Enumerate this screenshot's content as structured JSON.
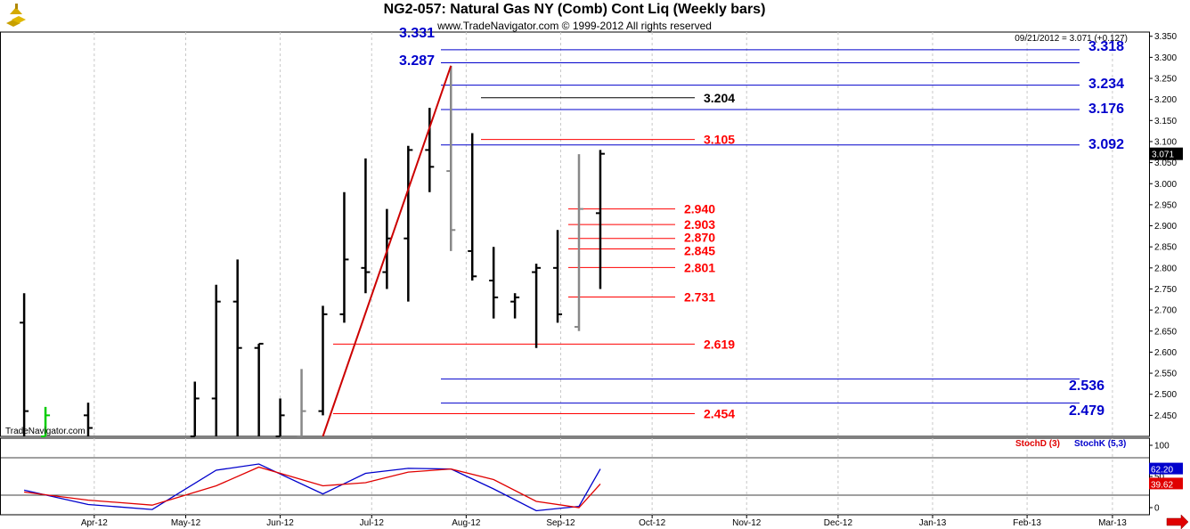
{
  "header": {
    "title": "NG2-057:  Natural Gas NY (Comb) Cont Liq  (Weekly bars)",
    "copyright": "www.TradeNavigator.com © 1999-2012 All rights reserved",
    "last_info": "09/21/2012 = 3.071 (+0.127)",
    "watermark": "TradeNavigator.com",
    "logo_icon": "gold-bars-icon"
  },
  "chart_data": [
    {
      "type": "bar",
      "subtype": "ohlc",
      "ylim": [
        2.4,
        3.36
      ],
      "y_ticks": [
        "3.350",
        "3.300",
        "3.250",
        "3.200",
        "3.150",
        "3.100",
        "3.050",
        "3.000",
        "2.950",
        "2.900",
        "2.850",
        "2.800",
        "2.750",
        "2.700",
        "2.650",
        "2.600",
        "2.550",
        "2.500",
        "2.450"
      ],
      "last_price_label": "3.071",
      "x_ticks": [
        "Apr-12",
        "May-12",
        "Jun-12",
        "Jul-12",
        "Aug-12",
        "Sep-12",
        "Oct-12",
        "Nov-12",
        "Dec-12",
        "Jan-13",
        "Feb-13",
        "Mar-13"
      ],
      "x_tick_dates": [
        "2012-04-01",
        "2012-05-01",
        "2012-06-01",
        "2012-07-01",
        "2012-08-01",
        "2012-09-01",
        "2012-10-01",
        "2012-11-01",
        "2012-12-01",
        "2013-01-01",
        "2013-02-01",
        "2013-03-01"
      ],
      "bars": [
        {
          "date": "2012-03-09",
          "open": 2.67,
          "high": 2.74,
          "low": 2.4,
          "close": 2.46,
          "color": "#000000"
        },
        {
          "date": "2012-03-16",
          "open": 2.4,
          "high": 2.47,
          "low": 2.4,
          "close": 2.45,
          "color": "#00cc00"
        },
        {
          "date": "2012-03-30",
          "open": 2.45,
          "high": 2.48,
          "low": 2.4,
          "close": 2.42,
          "color": "#000000"
        },
        {
          "date": "2012-05-04",
          "open": 2.4,
          "high": 2.53,
          "low": 2.4,
          "close": 2.49,
          "color": "#000000"
        },
        {
          "date": "2012-05-11",
          "open": 2.49,
          "high": 2.76,
          "low": 2.4,
          "close": 2.72,
          "color": "#000000"
        },
        {
          "date": "2012-05-18",
          "open": 2.72,
          "high": 2.82,
          "low": 2.4,
          "close": 2.61,
          "color": "#000000"
        },
        {
          "date": "2012-05-25",
          "open": 2.61,
          "high": 2.62,
          "low": 2.4,
          "close": 2.62,
          "color": "#000000"
        },
        {
          "date": "2012-06-01",
          "open": 2.4,
          "high": 2.49,
          "low": 2.4,
          "close": 2.45,
          "color": "#000000"
        },
        {
          "date": "2012-06-08",
          "open": 2.4,
          "high": 2.56,
          "low": 2.4,
          "close": 2.46,
          "color": "#888888"
        },
        {
          "date": "2012-06-15",
          "open": 2.46,
          "high": 2.71,
          "low": 2.45,
          "close": 2.69,
          "color": "#000000"
        },
        {
          "date": "2012-06-22",
          "open": 2.69,
          "high": 2.98,
          "low": 2.67,
          "close": 2.82,
          "color": "#000000"
        },
        {
          "date": "2012-06-29",
          "open": 2.8,
          "high": 3.06,
          "low": 2.74,
          "close": 2.79,
          "color": "#000000"
        },
        {
          "date": "2012-07-06",
          "open": 2.79,
          "high": 2.94,
          "low": 2.75,
          "close": 2.87,
          "color": "#000000"
        },
        {
          "date": "2012-07-13",
          "open": 2.87,
          "high": 3.09,
          "low": 2.72,
          "close": 3.08,
          "color": "#000000"
        },
        {
          "date": "2012-07-20",
          "open": 3.08,
          "high": 3.18,
          "low": 2.98,
          "close": 3.04,
          "color": "#000000"
        },
        {
          "date": "2012-07-27",
          "open": 3.03,
          "high": 3.28,
          "low": 2.84,
          "close": 2.89,
          "color": "#888888"
        },
        {
          "date": "2012-08-03",
          "open": 2.84,
          "high": 3.12,
          "low": 2.77,
          "close": 2.78,
          "color": "#000000"
        },
        {
          "date": "2012-08-10",
          "open": 2.77,
          "high": 2.85,
          "low": 2.68,
          "close": 2.73,
          "color": "#000000"
        },
        {
          "date": "2012-08-17",
          "open": 2.72,
          "high": 2.74,
          "low": 2.68,
          "close": 2.73,
          "color": "#000000"
        },
        {
          "date": "2012-08-24",
          "open": 2.79,
          "high": 2.81,
          "low": 2.61,
          "close": 2.8,
          "color": "#000000"
        },
        {
          "date": "2012-08-31",
          "open": 2.8,
          "high": 2.89,
          "low": 2.67,
          "close": 2.69,
          "color": "#000000"
        },
        {
          "date": "2012-09-07",
          "open": 2.66,
          "high": 3.07,
          "low": 2.65,
          "close": 2.94,
          "color": "#888888"
        },
        {
          "date": "2012-09-14",
          "open": 2.93,
          "high": 3.08,
          "low": 2.75,
          "close": 3.071,
          "color": "#000000"
        }
      ],
      "levels_blue": [
        {
          "value": 3.318,
          "label": "3.318"
        },
        {
          "value": 3.287,
          "label": "3.287"
        },
        {
          "value": 3.234,
          "label": "3.234"
        },
        {
          "value": 3.176,
          "label": "3.176"
        },
        {
          "value": 3.092,
          "label": "3.092"
        },
        {
          "value": 2.536,
          "label": "2.536"
        },
        {
          "value": 2.479,
          "label": "2.479"
        }
      ],
      "level_top_partial": "3.331",
      "levels_red": [
        {
          "value": 3.204,
          "label": "3.204",
          "color": "#000000"
        },
        {
          "value": 3.105,
          "label": "3.105",
          "color": "#ff0000"
        },
        {
          "value": 2.94,
          "label": "2.940",
          "color": "#ff0000"
        },
        {
          "value": 2.903,
          "label": "2.903",
          "color": "#ff0000"
        },
        {
          "value": 2.87,
          "label": "2.870",
          "color": "#ff0000"
        },
        {
          "value": 2.845,
          "label": "2.845",
          "color": "#ff0000"
        },
        {
          "value": 2.801,
          "label": "2.801",
          "color": "#ff0000"
        },
        {
          "value": 2.731,
          "label": "2.731",
          "color": "#ff0000"
        },
        {
          "value": 2.619,
          "label": "2.619",
          "color": "#ff0000"
        },
        {
          "value": 2.454,
          "label": "2.454",
          "color": "#ff0000"
        }
      ],
      "trendline": {
        "x": [
          "2012-06-15",
          "2012-07-27"
        ],
        "y": [
          2.4,
          3.28
        ],
        "color": "#cc0000"
      },
      "colors": {
        "blue_levels": "#0000cc",
        "red_levels": "#ff0000",
        "trendline": "#cc0000"
      }
    },
    {
      "type": "line",
      "ylim": [
        0,
        100
      ],
      "y_ticks": [
        "100",
        "50",
        "0"
      ],
      "reference_lines": [
        80,
        20
      ],
      "series": [
        {
          "name": "StochK (5,3)",
          "color": "#0000cc",
          "last_label": "62.20",
          "x": [
            "2012-03-09",
            "2012-03-30",
            "2012-04-20",
            "2012-05-11",
            "2012-05-25",
            "2012-06-15",
            "2012-06-29",
            "2012-07-13",
            "2012-07-27",
            "2012-08-10",
            "2012-08-24",
            "2012-09-07",
            "2012-09-14"
          ],
          "y": [
            28,
            5,
            -3,
            60,
            70,
            22,
            55,
            63,
            62,
            30,
            -5,
            2,
            62
          ]
        },
        {
          "name": "StochD (3)",
          "color": "#e00000",
          "last_label": "39.62",
          "x": [
            "2012-03-09",
            "2012-03-30",
            "2012-04-20",
            "2012-05-11",
            "2012-05-25",
            "2012-06-15",
            "2012-06-29",
            "2012-07-13",
            "2012-07-27",
            "2012-08-10",
            "2012-08-24",
            "2012-09-07",
            "2012-09-14"
          ],
          "y": [
            25,
            12,
            4,
            35,
            65,
            35,
            40,
            57,
            62,
            45,
            10,
            0,
            38
          ]
        }
      ]
    }
  ]
}
